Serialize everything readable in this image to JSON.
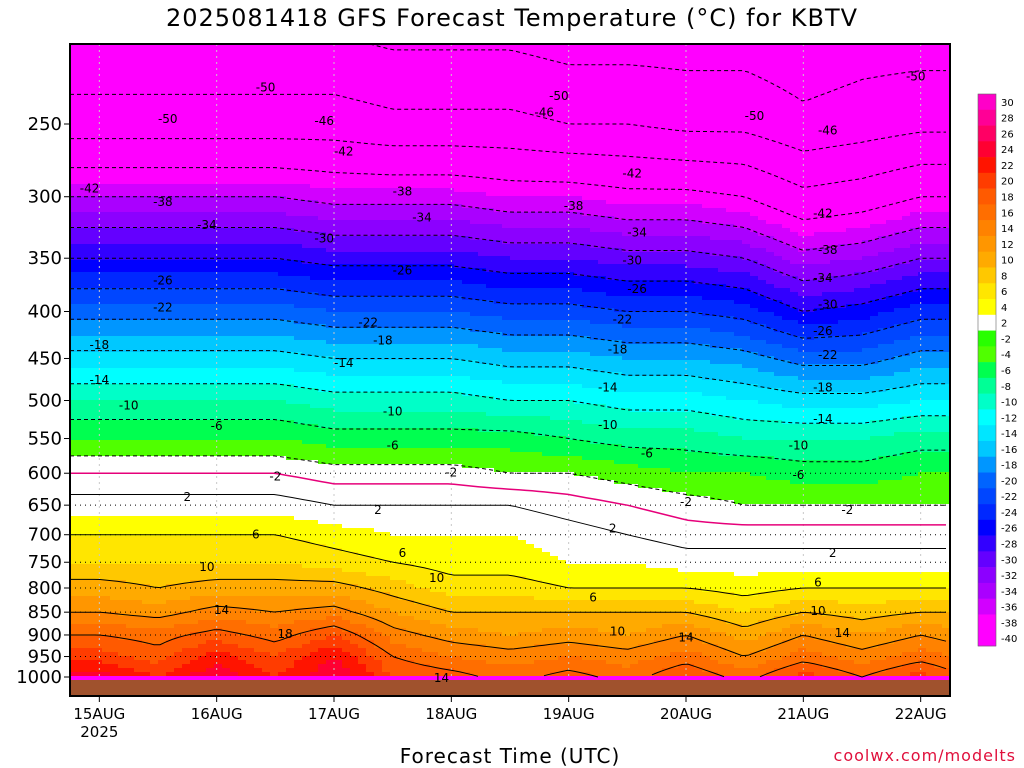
{
  "title": "2025081418 GFS Forecast Temperature (°C) for KBTV",
  "credit": "coolwx.com/modelts",
  "chart_data": {
    "type": "heatmap",
    "title": "2025081418 GFS Forecast Temperature (°C) for KBTV",
    "xlabel": "Forecast Time (UTC)",
    "ylabel": "",
    "y_scale": "log-pressure (hPa), inverted",
    "ylim": [
      1000,
      200
    ],
    "y_ticks": [
      250,
      300,
      350,
      400,
      450,
      500,
      550,
      600,
      650,
      700,
      750,
      800,
      850,
      900,
      950,
      1000
    ],
    "x_range": [
      "2025-08-14 18Z",
      "2025-08-22 06Z"
    ],
    "x_ticks": [
      {
        "label": "15AUG",
        "sub": "2025",
        "time": "2025-08-15 00Z"
      },
      {
        "label": "16AUG",
        "sub": "",
        "time": "2025-08-16 00Z"
      },
      {
        "label": "17AUG",
        "sub": "",
        "time": "2025-08-17 00Z"
      },
      {
        "label": "18AUG",
        "sub": "",
        "time": "2025-08-18 00Z"
      },
      {
        "label": "19AUG",
        "sub": "",
        "time": "2025-08-19 00Z"
      },
      {
        "label": "20AUG",
        "sub": "",
        "time": "2025-08-20 00Z"
      },
      {
        "label": "21AUG",
        "sub": "",
        "time": "2025-08-21 00Z"
      },
      {
        "label": "22AUG",
        "sub": "",
        "time": "2025-08-22 00Z"
      }
    ],
    "grid": "dotted vertical lines at day boundaries, dotted horizontal lines at 600-1000 hPa",
    "colorbar": {
      "placement": "right",
      "labels": [
        "30",
        "28",
        "26",
        "24",
        "22",
        "20",
        "18",
        "16",
        "14",
        "12",
        "10",
        "8",
        "6",
        "4",
        "2",
        "-2",
        "-4",
        "-6",
        "-8",
        "-10",
        "-12",
        "-14",
        "-16",
        "-18",
        "-20",
        "-22",
        "-24",
        "-26",
        "-28",
        "-30",
        "-32",
        "-34",
        "-36",
        "-38",
        "-40"
      ],
      "colors": [
        "#ff00c8",
        "#ff0096",
        "#ff0064",
        "#ff0032",
        "#ff1400",
        "#ff3c00",
        "#ff5a00",
        "#ff6e00",
        "#ff8200",
        "#ff9600",
        "#ffaa00",
        "#ffc800",
        "#ffe600",
        "#ffff00",
        "#ffffff",
        "#28ff00",
        "#50ff00",
        "#00ff50",
        "#00ff96",
        "#00ffc8",
        "#00ffff",
        "#00e6ff",
        "#00c8ff",
        "#0096ff",
        "#0064ff",
        "#0046ff",
        "#0028ff",
        "#0000ff",
        "#3200ff",
        "#6400ff",
        "#8c00ff",
        "#aa00ff",
        "#d200ff",
        "#ff00ff",
        "#ff00ff"
      ]
    },
    "zero_isotherm_color": "#e6007a",
    "levels_hPa": [
      1000,
      950,
      900,
      850,
      800,
      750,
      700,
      650,
      600,
      550,
      500,
      450,
      400,
      350,
      300,
      250,
      200
    ],
    "times": [
      "2025-08-14 18Z",
      "2025-08-15 00Z",
      "2025-08-15 12Z",
      "2025-08-16 00Z",
      "2025-08-16 12Z",
      "2025-08-17 00Z",
      "2025-08-17 12Z",
      "2025-08-18 00Z",
      "2025-08-18 12Z",
      "2025-08-19 00Z",
      "2025-08-19 12Z",
      "2025-08-20 00Z",
      "2025-08-20 12Z",
      "2025-08-21 00Z",
      "2025-08-21 12Z",
      "2025-08-22 00Z",
      "2025-08-22 06Z"
    ],
    "temperature_C_by_level": [
      [
        25,
        25,
        22,
        26,
        22,
        26,
        20,
        19,
        17,
        19,
        17,
        20,
        17,
        21,
        18,
        21,
        19
      ],
      [
        21,
        21,
        19,
        23,
        20,
        24,
        18,
        16,
        15,
        16,
        15,
        17,
        14,
        17,
        15,
        17,
        16
      ],
      [
        18,
        18,
        17,
        19,
        17,
        20,
        15,
        13,
        12,
        13,
        12,
        14,
        11,
        14,
        12,
        14,
        13
      ],
      [
        14,
        14,
        13,
        15,
        14,
        15,
        12,
        10,
        10,
        10,
        10,
        10,
        8,
        10,
        9,
        10,
        10
      ],
      [
        11,
        11,
        10,
        11,
        11,
        11,
        9,
        7,
        7,
        6,
        6,
        6,
        5,
        6,
        6,
        6,
        6
      ],
      [
        8,
        8,
        8,
        8,
        8,
        7,
        6,
        5,
        5,
        4,
        4,
        3,
        3,
        3,
        3,
        3,
        3
      ],
      [
        6,
        6,
        6,
        6,
        6,
        5,
        4,
        4,
        4,
        3,
        2,
        1,
        1,
        1,
        1,
        1,
        1
      ],
      [
        3,
        3,
        3,
        3,
        3,
        2,
        2,
        2,
        2,
        1,
        0,
        -1,
        -2,
        -2,
        -2,
        -2,
        -2
      ],
      [
        0,
        0,
        0,
        0,
        0,
        -1,
        -1,
        -1,
        -2,
        -2,
        -3,
        -4,
        -4,
        -5,
        -5,
        -4,
        -4
      ],
      [
        -4,
        -4,
        -4,
        -4,
        -4,
        -5,
        -5,
        -5,
        -5,
        -6,
        -7,
        -7,
        -8,
        -8,
        -8,
        -7,
        -7
      ],
      [
        -8,
        -8,
        -8,
        -8,
        -8,
        -9,
        -9,
        -9,
        -10,
        -10,
        -11,
        -11,
        -12,
        -13,
        -13,
        -12,
        -12
      ],
      [
        -13,
        -13,
        -13,
        -13,
        -13,
        -14,
        -14,
        -14,
        -15,
        -15,
        -16,
        -16,
        -17,
        -19,
        -19,
        -17,
        -17
      ],
      [
        -19,
        -19,
        -19,
        -19,
        -19,
        -20,
        -20,
        -20,
        -21,
        -21,
        -22,
        -22,
        -23,
        -26,
        -25,
        -23,
        -23
      ],
      [
        -26,
        -26,
        -26,
        -26,
        -26,
        -27,
        -27,
        -27,
        -28,
        -28,
        -29,
        -29,
        -30,
        -33,
        -32,
        -30,
        -30
      ],
      [
        -34,
        -34,
        -34,
        -34,
        -34,
        -35,
        -35,
        -35,
        -36,
        -36,
        -37,
        -37,
        -38,
        -41,
        -40,
        -38,
        -38
      ],
      [
        -44,
        -44,
        -44,
        -44,
        -44,
        -44,
        -45,
        -45,
        -45,
        -46,
        -46,
        -47,
        -47,
        -49,
        -48,
        -47,
        -47
      ],
      [
        -50,
        -50,
        -50,
        -50,
        -50,
        -50,
        -51,
        -51,
        -51,
        -52,
        -52,
        -52,
        -52,
        -53,
        -52,
        -52,
        -52
      ]
    ],
    "contour_labels": [
      {
        "text": "-50",
        "time": "2025-08-16 10Z",
        "p": 228
      },
      {
        "text": "-50",
        "time": "2025-08-18 22Z",
        "p": 233
      },
      {
        "text": "-50",
        "time": "2025-08-20 14Z",
        "p": 245
      },
      {
        "text": "-50",
        "time": "2025-08-21 23Z",
        "p": 222
      },
      {
        "text": "-50",
        "time": "2025-08-15 14Z",
        "p": 247
      },
      {
        "text": "-46",
        "time": "2025-08-16 22Z",
        "p": 248
      },
      {
        "text": "-46",
        "time": "2025-08-18 19Z",
        "p": 243
      },
      {
        "text": "-46",
        "time": "2025-08-21 05Z",
        "p": 254
      },
      {
        "text": "-42",
        "time": "2025-08-17 02Z",
        "p": 268
      },
      {
        "text": "-42",
        "time": "2025-08-19 13Z",
        "p": 283
      },
      {
        "text": "-42",
        "time": "2025-08-14 22Z",
        "p": 294
      },
      {
        "text": "-42",
        "time": "2025-08-21 04Z",
        "p": 313
      },
      {
        "text": "-38",
        "time": "2025-08-15 13Z",
        "p": 304
      },
      {
        "text": "-38",
        "time": "2025-08-17 14Z",
        "p": 296
      },
      {
        "text": "-38",
        "time": "2025-08-19 01Z",
        "p": 307
      },
      {
        "text": "-38",
        "time": "2025-08-21 05Z",
        "p": 343
      },
      {
        "text": "-34",
        "time": "2025-08-15 22Z",
        "p": 322
      },
      {
        "text": "-34",
        "time": "2025-08-17 18Z",
        "p": 316
      },
      {
        "text": "-34",
        "time": "2025-08-19 14Z",
        "p": 328
      },
      {
        "text": "-34",
        "time": "2025-08-21 04Z",
        "p": 368
      },
      {
        "text": "-30",
        "time": "2025-08-16 22Z",
        "p": 333
      },
      {
        "text": "-30",
        "time": "2025-08-19 13Z",
        "p": 352
      },
      {
        "text": "-30",
        "time": "2025-08-21 05Z",
        "p": 393
      },
      {
        "text": "-26",
        "time": "2025-08-15 13Z",
        "p": 370
      },
      {
        "text": "-26",
        "time": "2025-08-17 14Z",
        "p": 361
      },
      {
        "text": "-26",
        "time": "2025-08-19 14Z",
        "p": 378
      },
      {
        "text": "-26",
        "time": "2025-08-21 04Z",
        "p": 420
      },
      {
        "text": "-22",
        "time": "2025-08-15 13Z",
        "p": 396
      },
      {
        "text": "-22",
        "time": "2025-08-17 07Z",
        "p": 411
      },
      {
        "text": "-22",
        "time": "2025-08-19 11Z",
        "p": 408
      },
      {
        "text": "-22",
        "time": "2025-08-21 05Z",
        "p": 446
      },
      {
        "text": "-18",
        "time": "2025-08-15 00Z",
        "p": 435
      },
      {
        "text": "-18",
        "time": "2025-08-17 10Z",
        "p": 430
      },
      {
        "text": "-18",
        "time": "2025-08-19 10Z",
        "p": 440
      },
      {
        "text": "-18",
        "time": "2025-08-21 04Z",
        "p": 484
      },
      {
        "text": "-14",
        "time": "2025-08-15 00Z",
        "p": 475
      },
      {
        "text": "-14",
        "time": "2025-08-17 02Z",
        "p": 455
      },
      {
        "text": "-14",
        "time": "2025-08-19 08Z",
        "p": 484
      },
      {
        "text": "-14",
        "time": "2025-08-21 04Z",
        "p": 524
      },
      {
        "text": "-10",
        "time": "2025-08-15 06Z",
        "p": 506
      },
      {
        "text": "-10",
        "time": "2025-08-17 12Z",
        "p": 514
      },
      {
        "text": "-10",
        "time": "2025-08-19 08Z",
        "p": 532
      },
      {
        "text": "-10",
        "time": "2025-08-20 23Z",
        "p": 560
      },
      {
        "text": "-6",
        "time": "2025-08-16 00Z",
        "p": 533
      },
      {
        "text": "-6",
        "time": "2025-08-17 12Z",
        "p": 560
      },
      {
        "text": "-6",
        "time": "2025-08-19 16Z",
        "p": 571
      },
      {
        "text": "-6",
        "time": "2025-08-20 23Z",
        "p": 603
      },
      {
        "text": "-2",
        "time": "2025-08-16 12Z",
        "p": 605
      },
      {
        "text": "-2",
        "time": "2025-08-18 00Z",
        "p": 599
      },
      {
        "text": "-2",
        "time": "2025-08-20 00Z",
        "p": 645
      },
      {
        "text": "-2",
        "time": "2025-08-21 09Z",
        "p": 658
      },
      {
        "text": "2",
        "time": "2025-08-15 18Z",
        "p": 637
      },
      {
        "text": "2",
        "time": "2025-08-17 09Z",
        "p": 658
      },
      {
        "text": "2",
        "time": "2025-08-19 09Z",
        "p": 689
      },
      {
        "text": "2",
        "time": "2025-08-21 06Z",
        "p": 733
      },
      {
        "text": "6",
        "time": "2025-08-16 08Z",
        "p": 700
      },
      {
        "text": "6",
        "time": "2025-08-17 14Z",
        "p": 733
      },
      {
        "text": "6",
        "time": "2025-08-19 05Z",
        "p": 819
      },
      {
        "text": "6",
        "time": "2025-08-21 03Z",
        "p": 789
      },
      {
        "text": "10",
        "time": "2025-08-15 22Z",
        "p": 759
      },
      {
        "text": "10",
        "time": "2025-08-17 21Z",
        "p": 780
      },
      {
        "text": "10",
        "time": "2025-08-19 10Z",
        "p": 892
      },
      {
        "text": "10",
        "time": "2025-08-21 03Z",
        "p": 848
      },
      {
        "text": "14",
        "time": "2025-08-16 01Z",
        "p": 845
      },
      {
        "text": "14",
        "time": "2025-08-20 00Z",
        "p": 906
      },
      {
        "text": "14",
        "time": "2025-08-21 08Z",
        "p": 896
      },
      {
        "text": "14",
        "time": "2025-08-17 22Z",
        "p": 1003
      },
      {
        "text": "18",
        "time": "2025-08-16 14Z",
        "p": 898
      }
    ]
  },
  "y_tick_labels": [
    "250",
    "300",
    "350",
    "400",
    "450",
    "500",
    "550",
    "600",
    "650",
    "700",
    "750",
    "800",
    "850",
    "900",
    "950",
    "1000"
  ],
  "x_tick_labels": [
    "15AUG",
    "16AUG",
    "17AUG",
    "18AUG",
    "19AUG",
    "20AUG",
    "21AUG",
    "22AUG"
  ],
  "x_tick_sub": "2025",
  "colorbar_labels": [
    "30",
    "28",
    "26",
    "24",
    "22",
    "20",
    "18",
    "16",
    "14",
    "12",
    "10",
    "8",
    "6",
    "4",
    "2",
    "-2",
    "-4",
    "-6",
    "-8",
    "-10",
    "-12",
    "-14",
    "-16",
    "-18",
    "-20",
    "-22",
    "-24",
    "-26",
    "-28",
    "-30",
    "-32",
    "-34",
    "-36",
    "-38",
    "-40"
  ],
  "ground_color": "#a0522d"
}
